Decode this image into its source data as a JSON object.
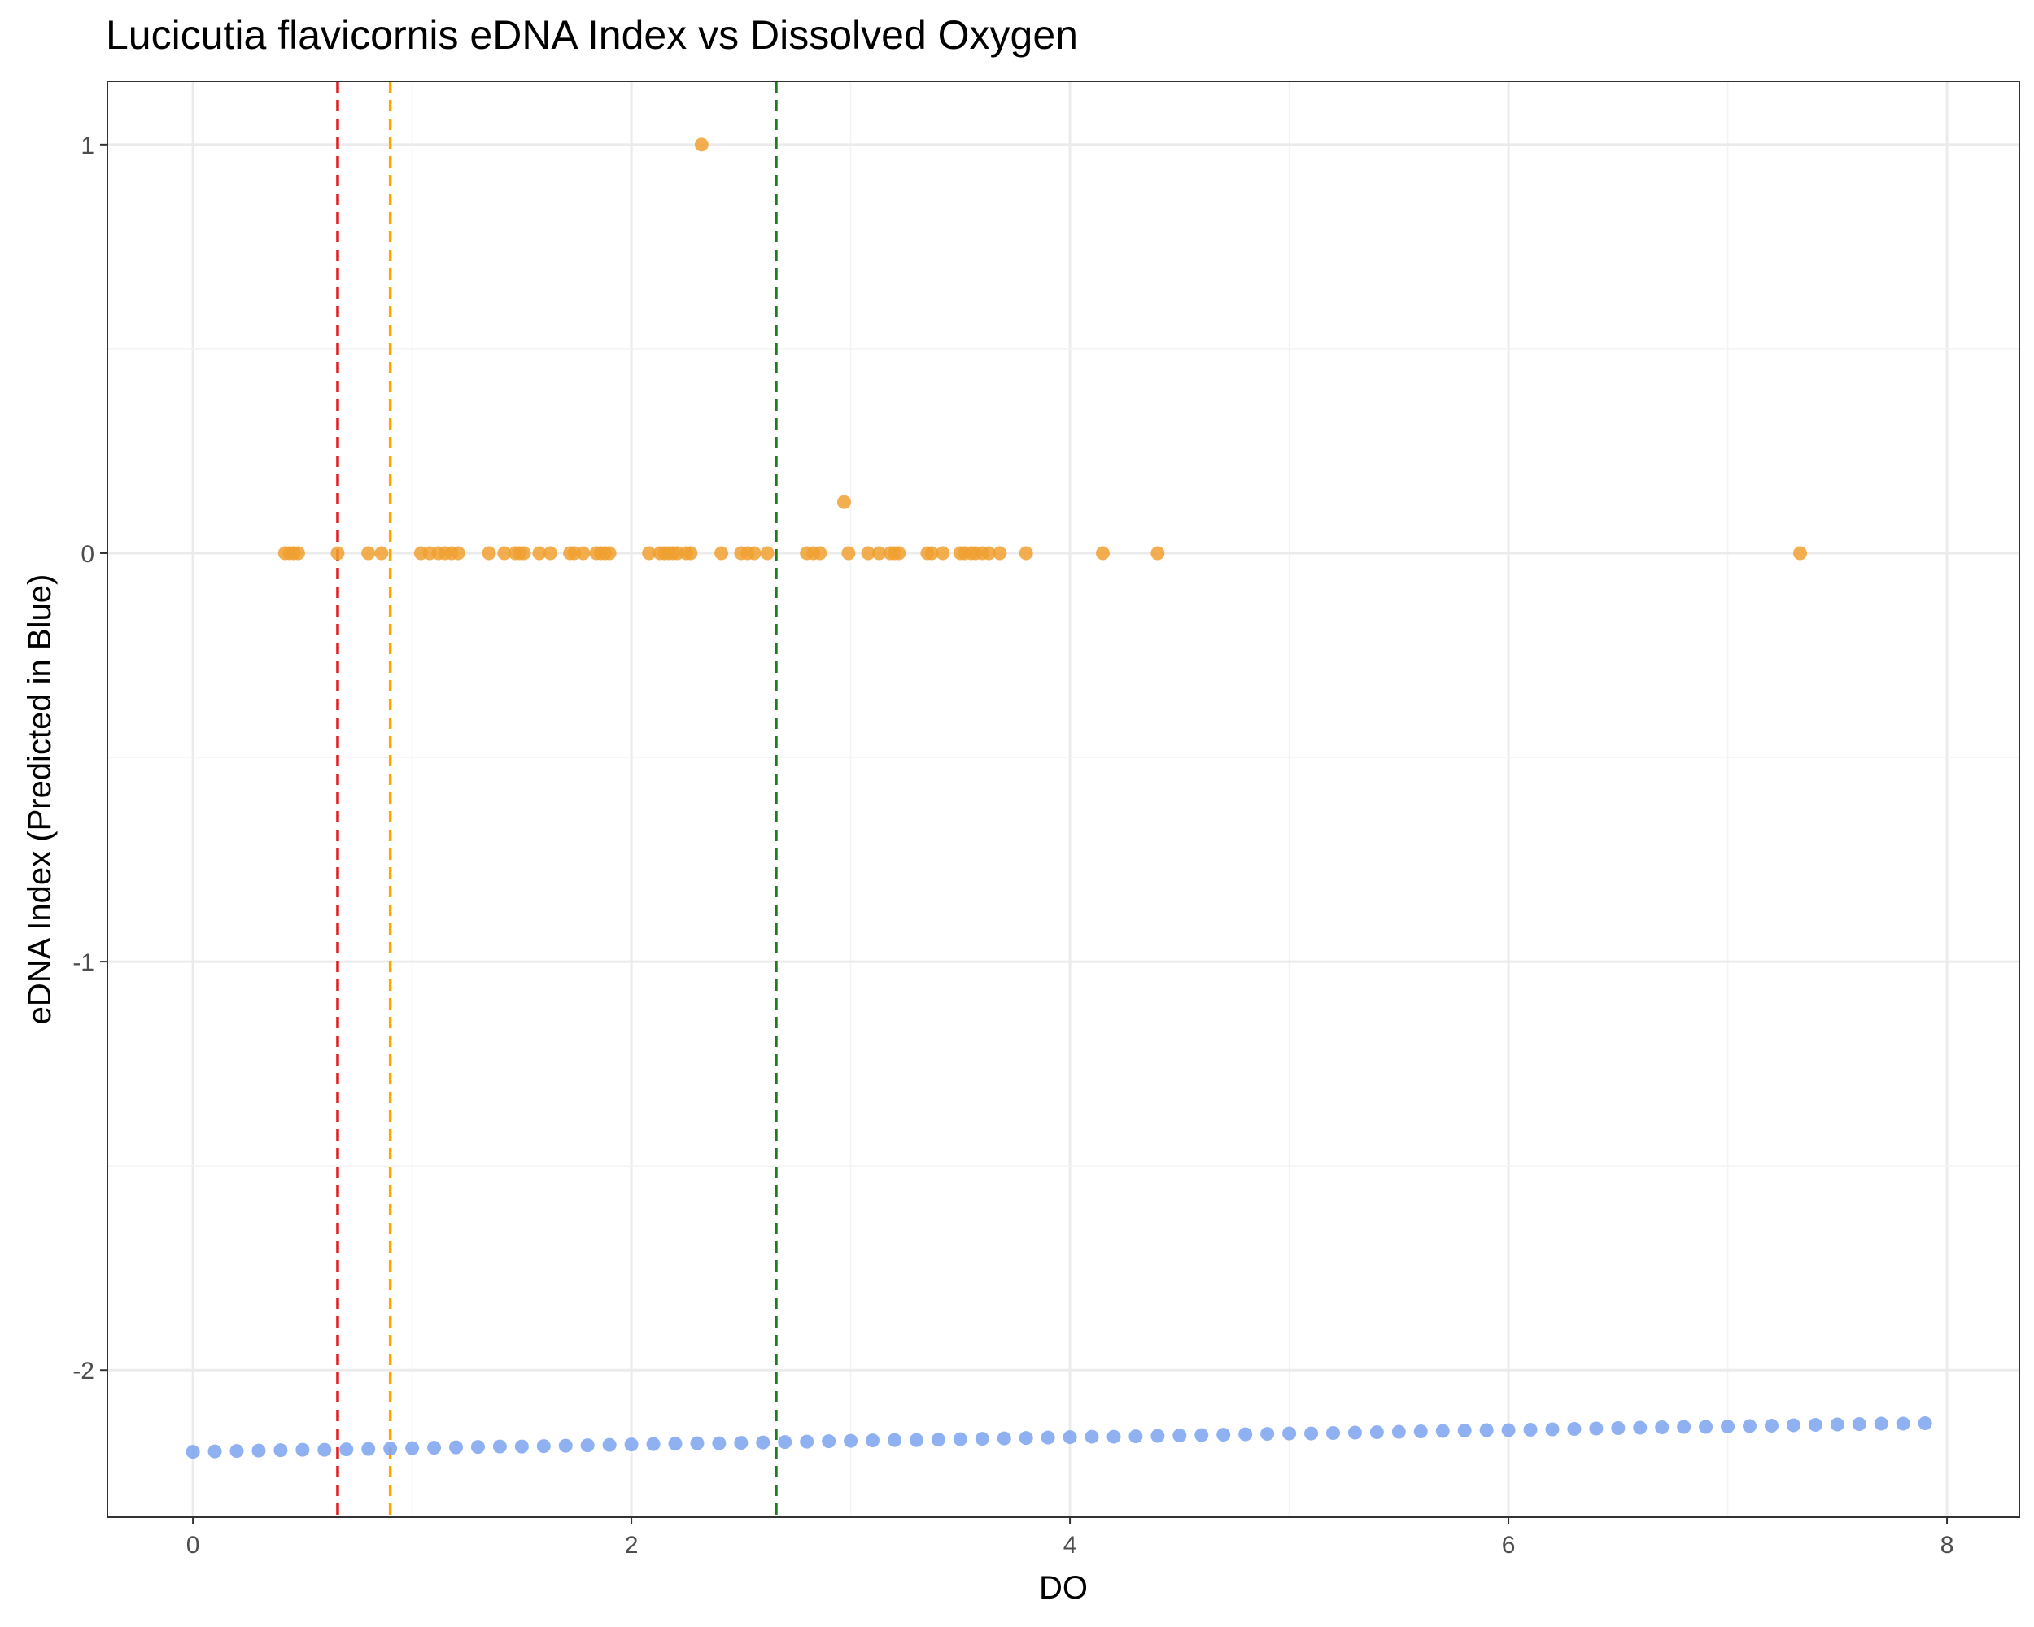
{
  "chart_data": {
    "type": "scatter",
    "title": "Lucicutia flavicornis eDNA Index vs Dissolved Oxygen",
    "xlabel": "DO",
    "ylabel": "eDNA Index (Predicted in Blue)",
    "xlim": [
      -0.39,
      8.33
    ],
    "ylim": [
      -2.36,
      1.155
    ],
    "x_ticks": [
      0,
      2,
      4,
      6,
      8
    ],
    "x_tick_labels": [
      "0",
      "2",
      "4",
      "6",
      "8"
    ],
    "y_ticks": [
      -2,
      -1,
      0,
      1
    ],
    "y_tick_labels": [
      "-2",
      "-1",
      "0",
      "1"
    ],
    "grid": true,
    "legend": "none",
    "vlines": [
      {
        "x": 0.66,
        "color": "#e41a1c",
        "style": "dashed"
      },
      {
        "x": 0.9,
        "color": "#ffa500",
        "style": "dashed"
      },
      {
        "x": 2.66,
        "color": "#1a7f1a",
        "style": "dashed"
      }
    ],
    "series": [
      {
        "color": "#f0a030",
        "points": [
          [
            0.42,
            0
          ],
          [
            0.44,
            0
          ],
          [
            0.46,
            0
          ],
          [
            0.48,
            0
          ],
          [
            0.66,
            0
          ],
          [
            0.8,
            0
          ],
          [
            0.86,
            0
          ],
          [
            1.04,
            0
          ],
          [
            1.08,
            0
          ],
          [
            1.12,
            0
          ],
          [
            1.15,
            0
          ],
          [
            1.18,
            0
          ],
          [
            1.21,
            0
          ],
          [
            1.35,
            0
          ],
          [
            1.42,
            0
          ],
          [
            1.47,
            0
          ],
          [
            1.49,
            0
          ],
          [
            1.51,
            0
          ],
          [
            1.58,
            0
          ],
          [
            1.63,
            0
          ],
          [
            1.72,
            0
          ],
          [
            1.74,
            0
          ],
          [
            1.78,
            0
          ],
          [
            1.84,
            0
          ],
          [
            1.86,
            0
          ],
          [
            1.88,
            0
          ],
          [
            1.9,
            0
          ],
          [
            2.08,
            0
          ],
          [
            2.13,
            0
          ],
          [
            2.15,
            0
          ],
          [
            2.17,
            0
          ],
          [
            2.19,
            0
          ],
          [
            2.21,
            0
          ],
          [
            2.25,
            0
          ],
          [
            2.27,
            0
          ],
          [
            2.32,
            1
          ],
          [
            2.41,
            0
          ],
          [
            2.5,
            0
          ],
          [
            2.53,
            0
          ],
          [
            2.56,
            0
          ],
          [
            2.62,
            0
          ],
          [
            2.8,
            0
          ],
          [
            2.83,
            0
          ],
          [
            2.86,
            0
          ],
          [
            2.97,
            0.125
          ],
          [
            2.99,
            0
          ],
          [
            3.08,
            0
          ],
          [
            3.13,
            0
          ],
          [
            3.18,
            0
          ],
          [
            3.2,
            0
          ],
          [
            3.22,
            0
          ],
          [
            3.35,
            0
          ],
          [
            3.37,
            0
          ],
          [
            3.42,
            0
          ],
          [
            3.5,
            0
          ],
          [
            3.52,
            0
          ],
          [
            3.55,
            0
          ],
          [
            3.57,
            0
          ],
          [
            3.6,
            0
          ],
          [
            3.63,
            0
          ],
          [
            3.68,
            0
          ],
          [
            3.8,
            0
          ],
          [
            4.15,
            0
          ],
          [
            4.4,
            0
          ],
          [
            7.33,
            0
          ]
        ]
      },
      {
        "color": "#7ba3f0",
        "points": [
          [
            0.0,
            -2.2
          ],
          [
            0.1,
            -2.199
          ],
          [
            0.2,
            -2.198
          ],
          [
            0.3,
            -2.197
          ],
          [
            0.4,
            -2.196
          ],
          [
            0.5,
            -2.195
          ],
          [
            0.6,
            -2.195
          ],
          [
            0.7,
            -2.194
          ],
          [
            0.8,
            -2.193
          ],
          [
            0.9,
            -2.192
          ],
          [
            1.0,
            -2.191
          ],
          [
            1.1,
            -2.19
          ],
          [
            1.2,
            -2.189
          ],
          [
            1.3,
            -2.188
          ],
          [
            1.4,
            -2.187
          ],
          [
            1.5,
            -2.187
          ],
          [
            1.6,
            -2.186
          ],
          [
            1.7,
            -2.185
          ],
          [
            1.8,
            -2.184
          ],
          [
            1.9,
            -2.183
          ],
          [
            2.0,
            -2.182
          ],
          [
            2.1,
            -2.181
          ],
          [
            2.2,
            -2.18
          ],
          [
            2.3,
            -2.179
          ],
          [
            2.4,
            -2.179
          ],
          [
            2.5,
            -2.178
          ],
          [
            2.6,
            -2.177
          ],
          [
            2.7,
            -2.176
          ],
          [
            2.8,
            -2.175
          ],
          [
            2.9,
            -2.174
          ],
          [
            3.0,
            -2.173
          ],
          [
            3.1,
            -2.172
          ],
          [
            3.2,
            -2.171
          ],
          [
            3.3,
            -2.171
          ],
          [
            3.4,
            -2.17
          ],
          [
            3.5,
            -2.169
          ],
          [
            3.6,
            -2.168
          ],
          [
            3.7,
            -2.167
          ],
          [
            3.8,
            -2.166
          ],
          [
            3.9,
            -2.165
          ],
          [
            4.0,
            -2.164
          ],
          [
            4.1,
            -2.163
          ],
          [
            4.2,
            -2.163
          ],
          [
            4.3,
            -2.162
          ],
          [
            4.4,
            -2.161
          ],
          [
            4.5,
            -2.16
          ],
          [
            4.6,
            -2.159
          ],
          [
            4.7,
            -2.158
          ],
          [
            4.8,
            -2.157
          ],
          [
            4.9,
            -2.156
          ],
          [
            5.0,
            -2.155
          ],
          [
            5.1,
            -2.155
          ],
          [
            5.2,
            -2.154
          ],
          [
            5.3,
            -2.153
          ],
          [
            5.4,
            -2.152
          ],
          [
            5.5,
            -2.151
          ],
          [
            5.6,
            -2.15
          ],
          [
            5.7,
            -2.149
          ],
          [
            5.8,
            -2.148
          ],
          [
            5.9,
            -2.147
          ],
          [
            6.0,
            -2.147
          ],
          [
            6.1,
            -2.146
          ],
          [
            6.2,
            -2.145
          ],
          [
            6.3,
            -2.144
          ],
          [
            6.4,
            -2.143
          ],
          [
            6.5,
            -2.142
          ],
          [
            6.6,
            -2.141
          ],
          [
            6.7,
            -2.14
          ],
          [
            6.8,
            -2.139
          ],
          [
            6.9,
            -2.139
          ],
          [
            7.0,
            -2.138
          ],
          [
            7.1,
            -2.137
          ],
          [
            7.2,
            -2.136
          ],
          [
            7.3,
            -2.135
          ],
          [
            7.4,
            -2.134
          ],
          [
            7.5,
            -2.133
          ],
          [
            7.6,
            -2.132
          ],
          [
            7.7,
            -2.131
          ],
          [
            7.8,
            -2.131
          ],
          [
            7.9,
            -2.13
          ]
        ]
      }
    ]
  }
}
